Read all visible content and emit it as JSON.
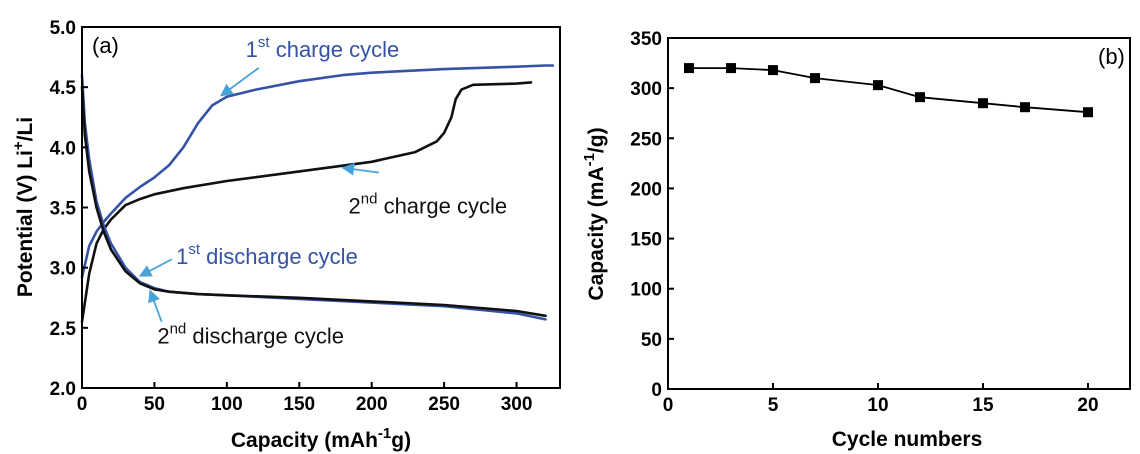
{
  "chart_data": [
    {
      "type": "line",
      "panel_label": "(a)",
      "xlabel_parts": [
        "Capacity (mAh",
        "-1",
        "g)"
      ],
      "ylabel_parts": [
        "Potential (V) Li",
        "+",
        "/Li"
      ],
      "xlim": [
        0,
        330
      ],
      "ylim": [
        2.0,
        5.0
      ],
      "x_ticks": [
        0,
        50,
        100,
        150,
        200,
        250,
        300
      ],
      "y_ticks": [
        "2.0",
        "2.5",
        "3.0",
        "3.5",
        "4.0",
        "4.5",
        "5.0"
      ],
      "grid": false,
      "colors": {
        "first_cycle": "#3553a6",
        "second_cycle": "#111111",
        "arrow": "#4aa3d8"
      },
      "series": [
        {
          "cycle": 1,
          "step": "charge",
          "color": "#3553a6",
          "x": [
            0,
            5,
            10,
            15,
            20,
            30,
            40,
            50,
            60,
            70,
            80,
            90,
            100,
            120,
            150,
            180,
            200,
            250,
            300,
            320,
            325
          ],
          "y": [
            2.92,
            3.18,
            3.3,
            3.38,
            3.45,
            3.58,
            3.67,
            3.75,
            3.85,
            4.0,
            4.2,
            4.35,
            4.42,
            4.48,
            4.55,
            4.6,
            4.62,
            4.65,
            4.67,
            4.68,
            4.68
          ]
        },
        {
          "cycle": 2,
          "step": "charge",
          "color": "#111111",
          "x": [
            0,
            5,
            10,
            15,
            20,
            30,
            40,
            50,
            70,
            100,
            150,
            200,
            230,
            245,
            250,
            255,
            258,
            262,
            270,
            300,
            310
          ],
          "y": [
            2.55,
            2.95,
            3.2,
            3.32,
            3.4,
            3.52,
            3.57,
            3.61,
            3.66,
            3.72,
            3.8,
            3.88,
            3.96,
            4.05,
            4.12,
            4.25,
            4.4,
            4.48,
            4.52,
            4.53,
            4.54
          ]
        },
        {
          "cycle": 1,
          "step": "discharge",
          "color": "#3553a6",
          "x": [
            0,
            2,
            5,
            10,
            15,
            20,
            30,
            40,
            50,
            60,
            80,
            100,
            150,
            200,
            250,
            300,
            320
          ],
          "y": [
            4.6,
            4.2,
            3.9,
            3.55,
            3.35,
            3.2,
            3.0,
            2.88,
            2.83,
            2.8,
            2.78,
            2.77,
            2.74,
            2.71,
            2.68,
            2.62,
            2.57
          ]
        },
        {
          "cycle": 2,
          "step": "discharge",
          "color": "#111111",
          "x": [
            0,
            2,
            5,
            10,
            15,
            20,
            30,
            40,
            50,
            60,
            80,
            100,
            150,
            200,
            250,
            300,
            320
          ],
          "y": [
            4.5,
            4.1,
            3.8,
            3.5,
            3.3,
            3.15,
            2.97,
            2.87,
            2.82,
            2.8,
            2.78,
            2.77,
            2.75,
            2.72,
            2.69,
            2.64,
            2.6
          ]
        }
      ],
      "annotations": [
        {
          "parts": [
            "1",
            "st",
            "  charge cycle"
          ],
          "color": "#3553a6",
          "x": 113,
          "y": 4.75,
          "target": [
            96,
            4.43
          ],
          "label_anchor": [
            122,
            4.66
          ]
        },
        {
          "parts": [
            "2",
            "nd",
            " charge cycle"
          ],
          "color": "#111111",
          "x": 184,
          "y": 3.45,
          "target": [
            180,
            3.83
          ],
          "label_anchor": [
            205,
            3.79
          ]
        },
        {
          "parts": [
            "1",
            "st",
            "  discharge cycle"
          ],
          "color": "#3553a6",
          "x": 65,
          "y": 3.03,
          "target": [
            40,
            2.93
          ],
          "label_anchor": [
            62,
            3.07
          ]
        },
        {
          "parts": [
            "2",
            "nd",
            " discharge cycle"
          ],
          "color": "#111111",
          "x": 52,
          "y": 2.37,
          "target": [
            47,
            2.81
          ],
          "label_anchor": [
            55,
            2.55
          ]
        }
      ]
    },
    {
      "type": "line",
      "panel_label": "(b)",
      "xlabel": "Cycle numbers",
      "ylabel_parts": [
        "Capacity (mA",
        "-1",
        "/g)"
      ],
      "xlim": [
        0,
        22
      ],
      "ylim": [
        0,
        350
      ],
      "x_ticks": [
        0,
        5,
        10,
        15,
        20
      ],
      "y_ticks": [
        0,
        50,
        100,
        150,
        200,
        250,
        300,
        350
      ],
      "grid": false,
      "marker": "square",
      "series": [
        {
          "color": "#000000",
          "x": [
            1,
            3,
            5,
            7,
            10,
            12,
            15,
            17,
            20
          ],
          "y": [
            320,
            320,
            318,
            310,
            303,
            291,
            285,
            281,
            276
          ]
        }
      ]
    }
  ]
}
